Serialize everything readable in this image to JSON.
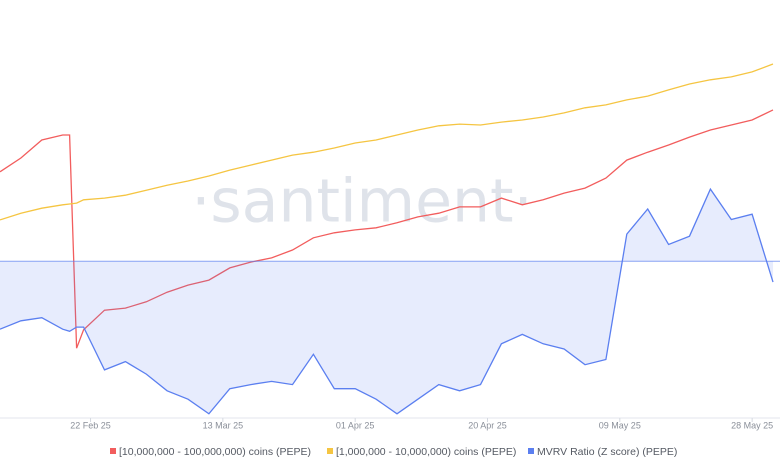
{
  "chart_data": {
    "type": "line",
    "watermark": "·santiment·",
    "x": [
      "2025-02-09",
      "2025-02-12",
      "2025-02-15",
      "2025-02-18",
      "2025-02-19",
      "2025-02-20",
      "2025-02-21",
      "2025-02-24",
      "2025-02-27",
      "2025-03-02",
      "2025-03-05",
      "2025-03-08",
      "2025-03-11",
      "2025-03-14",
      "2025-03-17",
      "2025-03-20",
      "2025-03-23",
      "2025-03-26",
      "2025-03-29",
      "2025-04-01",
      "2025-04-04",
      "2025-04-07",
      "2025-04-10",
      "2025-04-13",
      "2025-04-16",
      "2025-04-19",
      "2025-04-22",
      "2025-04-25",
      "2025-04-28",
      "2025-05-01",
      "2025-05-04",
      "2025-05-07",
      "2025-05-10",
      "2025-05-13",
      "2025-05-16",
      "2025-05-19",
      "2025-05-22",
      "2025-05-25",
      "2025-05-28",
      "2025-05-31"
    ],
    "xlim": [
      "2025-02-09",
      "2025-06-01"
    ],
    "xticks": [
      {
        "value": "2025-02-22",
        "label": "22 Feb 25"
      },
      {
        "value": "2025-03-13",
        "label": "13 Mar 25"
      },
      {
        "value": "2025-04-01",
        "label": "01 Apr 25"
      },
      {
        "value": "2025-04-20",
        "label": "20 Apr 25"
      },
      {
        "value": "2025-05-09",
        "label": "09 May 25"
      },
      {
        "value": "2025-05-28",
        "label": "28 May 25"
      }
    ],
    "ylim": [
      0,
      100
    ],
    "y2lim": [
      -1.5,
      2.5
    ],
    "series": [
      {
        "name": "[10,000,000 - 100,000,000) coins (PEPE)",
        "color": "#f25d5d",
        "values": [
          58.9,
          62.2,
          66.5,
          67.7,
          67.7,
          16.7,
          21.1,
          25.8,
          26.3,
          27.8,
          30.1,
          31.8,
          33.0,
          35.9,
          37.3,
          38.3,
          40.2,
          43.1,
          44.3,
          45.0,
          45.5,
          46.7,
          48.1,
          49.0,
          50.5,
          50.5,
          52.6,
          51.0,
          52.2,
          53.8,
          55.0,
          57.4,
          61.7,
          63.6,
          65.3,
          67.2,
          68.9,
          70.1,
          71.3,
          73.7
        ]
      },
      {
        "name": "[1,000,000 - 10,000,000) coins (PEPE)",
        "color": "#f5c542",
        "values": [
          47.4,
          49.0,
          50.2,
          51.0,
          51.2,
          51.4,
          52.2,
          52.6,
          53.3,
          54.5,
          55.7,
          56.7,
          57.9,
          59.3,
          60.5,
          61.7,
          62.9,
          63.6,
          64.6,
          65.8,
          66.5,
          67.7,
          68.9,
          69.9,
          70.3,
          70.1,
          70.8,
          71.3,
          72.0,
          73.0,
          74.2,
          74.9,
          76.1,
          77.0,
          78.5,
          79.9,
          80.9,
          81.6,
          82.8,
          84.7
        ]
      },
      {
        "name": "MVRV Ratio (Z score) (PEPE)",
        "color": "#5b7ff0",
        "axis": "y2",
        "area": true,
        "values": [
          -0.65,
          -0.57,
          -0.54,
          -0.65,
          -0.67,
          -0.63,
          -0.63,
          -1.04,
          -0.96,
          -1.08,
          -1.24,
          -1.32,
          -1.46,
          -1.22,
          -1.18,
          -1.15,
          -1.18,
          -0.89,
          -1.22,
          -1.22,
          -1.32,
          -1.46,
          -1.32,
          -1.18,
          -1.24,
          -1.18,
          -0.79,
          -0.7,
          -0.79,
          -0.84,
          -0.99,
          -0.94,
          0.26,
          0.5,
          0.16,
          0.24,
          0.69,
          0.4,
          0.45,
          -0.2
        ]
      }
    ]
  }
}
